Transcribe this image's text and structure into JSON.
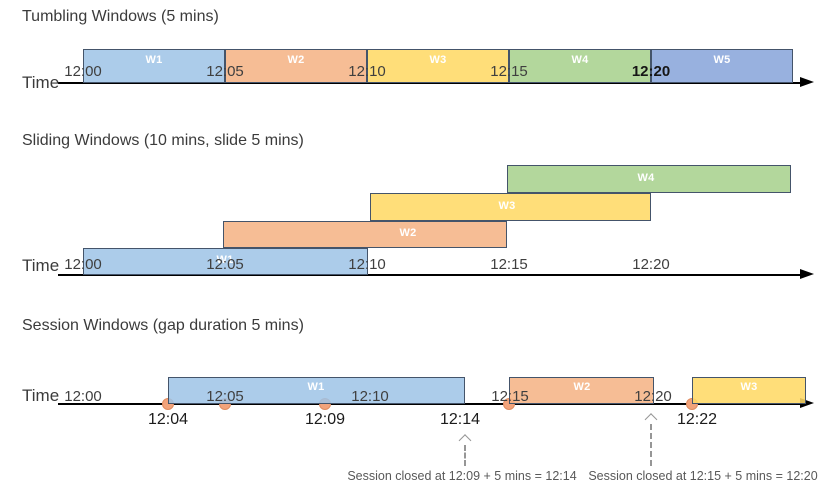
{
  "colors": {
    "window_blue": "#9DC3E6",
    "window_orange": "#F4B183",
    "window_yellow": "#FFD966",
    "window_green": "#A9D18E",
    "window_indigo": "#8FAADC",
    "window_border": "#44546A",
    "event_dot": "#F2A37B",
    "timeline": "#000000",
    "annotation_gray": "#969696"
  },
  "sections": [
    {
      "title": "Tumbling Windows (5 mins)",
      "axis_label": "Time",
      "ticks": [
        "12:00",
        "12:05",
        "12:10",
        "12:15",
        "12:20"
      ],
      "windows": [
        {
          "label": "W1",
          "color": "window_blue"
        },
        {
          "label": "W2",
          "color": "window_orange"
        },
        {
          "label": "W3",
          "color": "window_yellow"
        },
        {
          "label": "W4",
          "color": "window_green"
        },
        {
          "label": "W5",
          "color": "window_indigo"
        }
      ]
    },
    {
      "title": "Sliding Windows (10 mins, slide 5 mins)",
      "axis_label": "Time",
      "ticks": [
        "12:00",
        "12:05",
        "12:10",
        "12:15",
        "12:20"
      ],
      "windows": [
        {
          "label": "W1",
          "color": "window_blue"
        },
        {
          "label": "W2",
          "color": "window_orange"
        },
        {
          "label": "W3",
          "color": "window_yellow"
        },
        {
          "label": "W4",
          "color": "window_green"
        }
      ]
    },
    {
      "title": "Session Windows (gap duration 5 mins)",
      "axis_label": "Time",
      "ticks": [
        "12:00",
        "12:05",
        "12:10",
        "12:15",
        "12:20"
      ],
      "windows": [
        {
          "label": "W1",
          "color": "window_blue"
        },
        {
          "label": "W2",
          "color": "window_orange"
        },
        {
          "label": "W3",
          "color": "window_yellow"
        }
      ],
      "event_labels": [
        "12:04",
        "12:09",
        "12:14",
        "12:22"
      ],
      "annotations": [
        "Session closed at 12:09 + 5 mins = 12:14",
        "Session closed at 12:15 + 5 mins = 12:20"
      ]
    }
  ]
}
